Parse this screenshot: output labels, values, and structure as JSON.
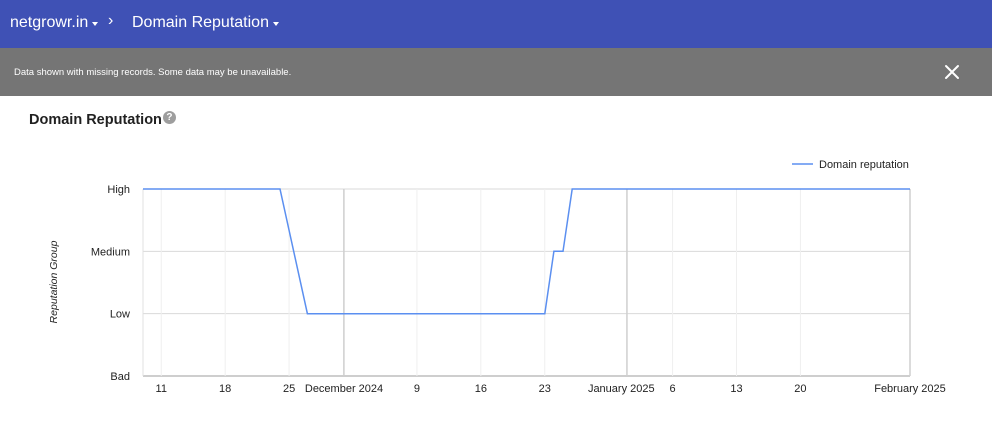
{
  "header": {
    "site": "netgrowr.in",
    "separator": "›",
    "page": "Domain Reputation"
  },
  "notice": {
    "text": "Data shown with missing records. Some data may be unavailable.",
    "close_icon": "close-icon"
  },
  "card": {
    "title": "Domain Reputation",
    "help_icon": "help-icon",
    "help_glyph": "?"
  },
  "colors": {
    "header_bg": "#3f51b5",
    "notice_bg": "#757575",
    "series": "#5b8ff0"
  },
  "chart_data": {
    "type": "line",
    "ylabel": "Reputation Group",
    "y_categories": [
      "Bad",
      "Low",
      "Medium",
      "High"
    ],
    "x_ticks": [
      {
        "label": "11",
        "date": "2024-11-11"
      },
      {
        "label": "18",
        "date": "2024-11-18"
      },
      {
        "label": "25",
        "date": "2024-11-25"
      },
      {
        "label": "December 2024",
        "date": "2024-12-01"
      },
      {
        "label": "9",
        "date": "2024-12-09"
      },
      {
        "label": "16",
        "date": "2024-12-16"
      },
      {
        "label": "23",
        "date": "2024-12-23"
      },
      {
        "label": "January 2025",
        "date": "2025-01-01"
      },
      {
        "label": "6",
        "date": "2025-01-06"
      },
      {
        "label": "13",
        "date": "2025-01-13"
      },
      {
        "label": "20",
        "date": "2025-01-20"
      },
      {
        "label": "February 2025",
        "date": "2025-02-01"
      }
    ],
    "xlim": [
      "2024-11-09",
      "2025-02-01"
    ],
    "legend": "top-right",
    "grid": true,
    "series": [
      {
        "name": "Domain reputation",
        "points": [
          {
            "date": "2024-11-09",
            "value": "High"
          },
          {
            "date": "2024-11-24",
            "value": "High"
          },
          {
            "date": "2024-11-27",
            "value": "Low"
          },
          {
            "date": "2024-12-23",
            "value": "Low"
          },
          {
            "date": "2024-12-24",
            "value": "Medium"
          },
          {
            "date": "2024-12-25",
            "value": "Medium"
          },
          {
            "date": "2024-12-26",
            "value": "High"
          },
          {
            "date": "2025-02-01",
            "value": "High"
          }
        ]
      }
    ]
  }
}
